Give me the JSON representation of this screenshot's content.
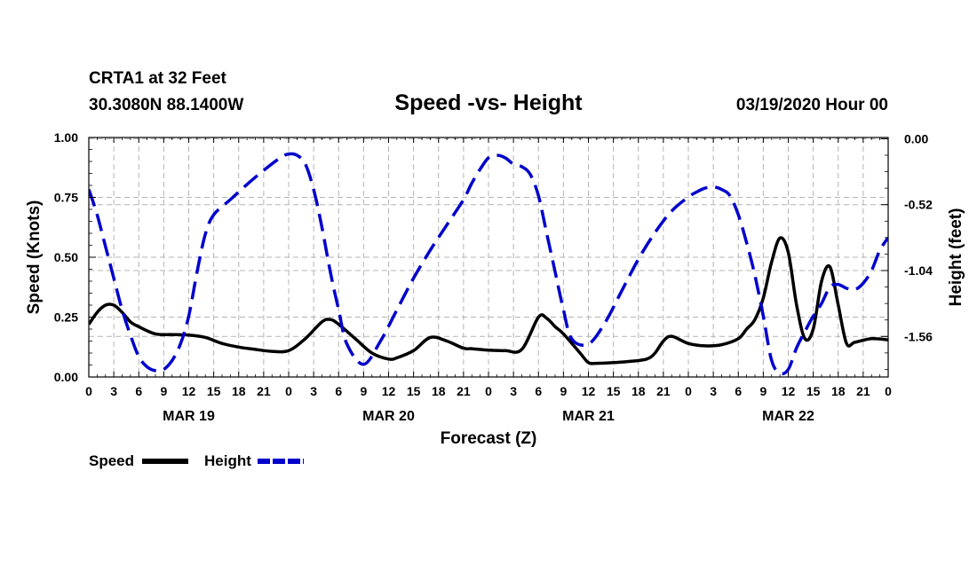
{
  "chart_data": {
    "type": "line",
    "station_line": "CRTA1 at 32 Feet",
    "coords_line": "30.3080N 88.1400W",
    "title": "Speed -vs- Height",
    "run_time": "03/19/2020 Hour 00",
    "xlabel": "Forecast (Z)",
    "ylabel_left": "Speed (Knots)",
    "ylabel_right": "Height (feet)",
    "grid": true,
    "x_range": [
      0,
      96
    ],
    "y_left_range": [
      0,
      1.0
    ],
    "y_right_range": [
      -1.88,
      0.01
    ],
    "y_left_ticks": [
      "0.00",
      "0.25",
      "0.50",
      "0.75",
      "1.00"
    ],
    "y_left_tick_values": [
      0,
      0.25,
      0.5,
      0.75,
      1.0
    ],
    "y_right_ticks": [
      "0.00",
      "-0.52",
      "-1.04",
      "-1.56"
    ],
    "y_right_tick_values": [
      0.0,
      -0.52,
      -1.04,
      -1.56
    ],
    "x_tick_labels": [
      "0",
      "3",
      "6",
      "9",
      "12",
      "15",
      "18",
      "21",
      "0",
      "3",
      "6",
      "9",
      "12",
      "15",
      "18",
      "21",
      "0",
      "3",
      "6",
      "9",
      "12",
      "15",
      "18",
      "21",
      "0",
      "3",
      "6",
      "9",
      "12",
      "15",
      "18",
      "21",
      "0"
    ],
    "day_labels": [
      {
        "label": "MAR 19",
        "hour": 12
      },
      {
        "label": "MAR 20",
        "hour": 36
      },
      {
        "label": "MAR 21",
        "hour": 60
      },
      {
        "label": "MAR 22",
        "hour": 84
      }
    ],
    "legend": [
      {
        "name": "Speed",
        "color": "#000000",
        "dash": "solid"
      },
      {
        "name": "Height",
        "color": "#0000cc",
        "dash": "dashed"
      }
    ],
    "series": [
      {
        "name": "Speed",
        "axis": "left",
        "color": "#000000",
        "x": [
          0,
          1,
          2,
          3,
          4,
          5,
          6,
          8,
          10,
          12,
          14,
          16,
          18,
          20,
          22,
          24,
          26,
          28,
          29,
          30,
          32,
          34,
          36,
          37,
          39,
          41,
          43,
          45,
          46,
          48,
          50,
          52,
          54,
          55,
          56,
          57,
          59,
          60,
          61,
          63,
          65,
          67,
          68,
          69,
          70,
          72,
          74,
          76,
          78,
          79,
          80,
          81,
          82,
          83,
          84,
          85,
          86,
          87,
          88,
          89,
          90,
          91,
          92,
          94,
          96
        ],
        "y": [
          0.22,
          0.27,
          0.3,
          0.3,
          0.27,
          0.23,
          0.21,
          0.18,
          0.177,
          0.175,
          0.165,
          0.14,
          0.125,
          0.115,
          0.107,
          0.11,
          0.16,
          0.23,
          0.24,
          0.22,
          0.16,
          0.1,
          0.075,
          0.08,
          0.11,
          0.165,
          0.15,
          0.12,
          0.118,
          0.112,
          0.11,
          0.115,
          0.25,
          0.245,
          0.21,
          0.18,
          0.1,
          0.06,
          0.057,
          0.06,
          0.065,
          0.075,
          0.1,
          0.15,
          0.17,
          0.14,
          0.13,
          0.135,
          0.16,
          0.2,
          0.24,
          0.33,
          0.48,
          0.58,
          0.52,
          0.3,
          0.16,
          0.2,
          0.4,
          0.46,
          0.3,
          0.14,
          0.145,
          0.16,
          0.155
        ]
      },
      {
        "name": "Height",
        "axis": "right",
        "color": "#0000cc",
        "x": [
          0,
          1,
          2,
          3,
          4,
          5,
          6,
          7,
          8,
          9,
          10,
          11,
          12,
          13,
          14,
          15,
          17,
          19,
          21,
          23,
          24,
          25,
          26,
          27,
          28,
          29,
          30,
          31,
          33,
          35,
          37,
          39,
          41,
          43,
          45,
          46,
          47,
          48,
          49,
          50,
          51,
          52,
          53,
          54,
          55,
          56,
          57,
          58,
          60,
          62,
          64,
          66,
          68,
          70,
          72,
          73,
          74,
          75,
          76,
          77,
          78,
          79,
          80,
          81,
          82,
          83,
          84,
          85,
          86,
          87,
          88,
          89,
          90,
          91,
          92,
          93,
          94,
          95,
          96
        ],
        "y": [
          -0.4,
          -0.6,
          -0.85,
          -1.1,
          -1.35,
          -1.55,
          -1.72,
          -1.8,
          -1.83,
          -1.82,
          -1.75,
          -1.62,
          -1.4,
          -1.05,
          -0.75,
          -0.6,
          -0.48,
          -0.36,
          -0.25,
          -0.15,
          -0.12,
          -0.13,
          -0.2,
          -0.4,
          -0.7,
          -1.05,
          -1.35,
          -1.62,
          -1.78,
          -1.6,
          -1.35,
          -1.1,
          -0.88,
          -0.68,
          -0.48,
          -0.35,
          -0.24,
          -0.15,
          -0.13,
          -0.15,
          -0.2,
          -0.22,
          -0.28,
          -0.45,
          -0.75,
          -1.05,
          -1.35,
          -1.58,
          -1.62,
          -1.45,
          -1.2,
          -0.95,
          -0.74,
          -0.57,
          -0.46,
          -0.42,
          -0.39,
          -0.38,
          -0.4,
          -0.45,
          -0.6,
          -0.82,
          -1.08,
          -1.4,
          -1.75,
          -1.85,
          -1.82,
          -1.65,
          -1.52,
          -1.4,
          -1.3,
          -1.17,
          -1.15,
          -1.18,
          -1.19,
          -1.14,
          -1.04,
          -0.88,
          -0.78
        ]
      }
    ]
  }
}
